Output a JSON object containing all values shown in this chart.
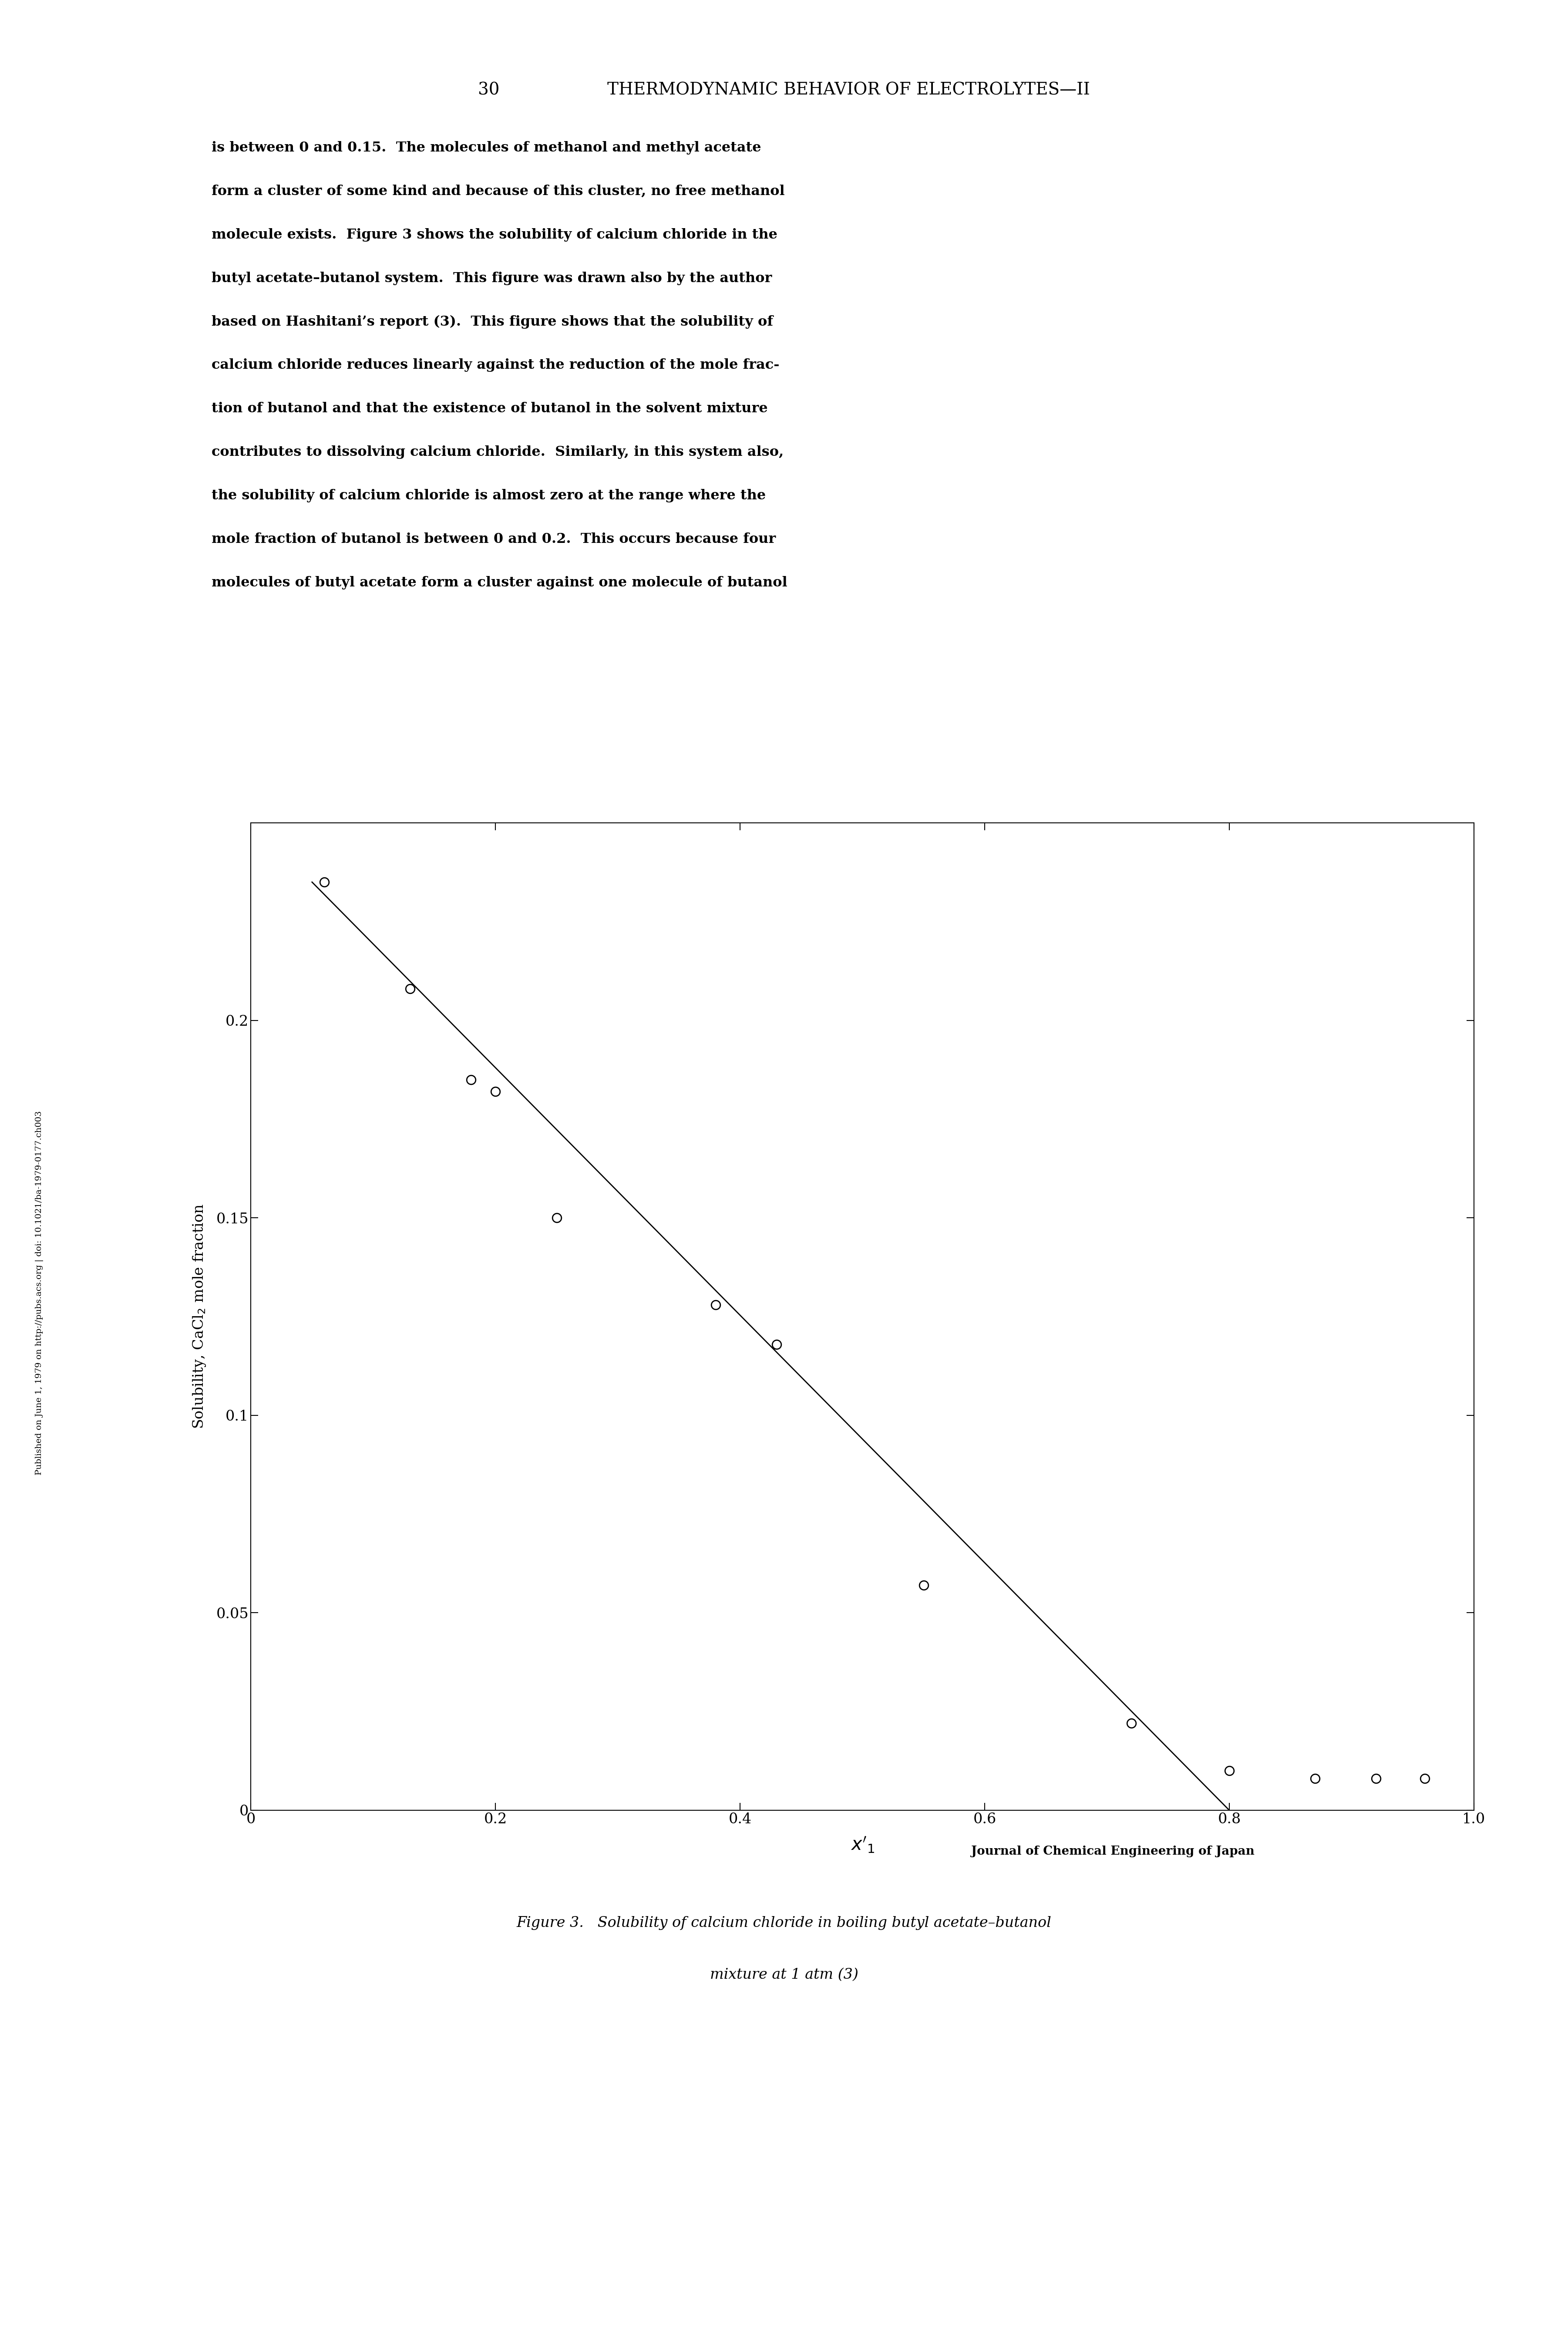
{
  "scatter_x": [
    0.06,
    0.13,
    0.18,
    0.2,
    0.25,
    0.38,
    0.43,
    0.55,
    0.72,
    0.8,
    0.87,
    0.92,
    0.96
  ],
  "scatter_y": [
    0.235,
    0.208,
    0.185,
    0.182,
    0.15,
    0.128,
    0.118,
    0.057,
    0.022,
    0.01,
    0.008,
    0.008,
    0.008
  ],
  "line_x": [
    0.05,
    0.8
  ],
  "line_y": [
    0.235,
    0.0
  ],
  "xlim": [
    0.0,
    1.0
  ],
  "ylim": [
    0.0,
    0.25
  ],
  "xticks": [
    0,
    0.2,
    0.4,
    0.6,
    0.8,
    1.0
  ],
  "yticks": [
    0,
    0.05,
    0.1,
    0.15,
    0.2
  ],
  "xlabel": "$x'_1$",
  "ylabel": "Solubility, CaCl$_2$ mole fraction",
  "page_header": "30                    THERMODYNAMIC BEHAVIOR OF ELECTROLYTES—II",
  "body_text": "is between 0 and 0.15.  The molecules of methanol and methyl acetate\nform a cluster of some kind and because of this cluster, no free methanol\nmolecule exists.  Figure 3 shows the solubility of calcium chloride in the\nbutyl acetate–butanol system.  This figure was drawn also by the author\nbased on Hashitani’s report (3).  This figure shows that the solubility of\ncalcium chloride reduces linearly against the reduction of the mole frac-\ntion of butanol and that the existence of butanol in the solvent mixture\ncontributes to dissolving calcium chloride.  Similarly, in this system also,\nthe solubility of calcium chloride is almost zero at the range where the\nmole fraction of butanol is between 0 and 0.2.  This occurs because four\nmolecules of butyl acetate form a cluster against one molecule of butanol",
  "sidebar_text": "Published on June 1, 1979 on http://pubs.acs.org | doi: 10.1021/ba-1979-0177.ch003",
  "journal_text": "Journal of Chemical Engineering of Japan",
  "caption_text": "Figure 3.   Solubility of calcium chloride in boiling butyl acetate–butanol\nmixture at 1 atm (3)",
  "bg_color": "#ffffff",
  "line_color": "#000000",
  "scatter_color": "#ffffff",
  "scatter_edgecolor": "#000000",
  "marker_size": 220,
  "marker_linewidth": 2.0,
  "line_linewidth": 2.0
}
